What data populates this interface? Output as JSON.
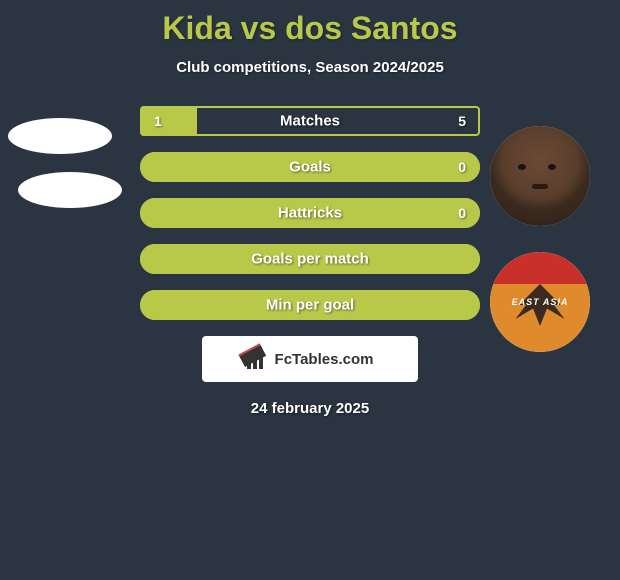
{
  "title": "Kida vs dos Santos",
  "subtitle": "Club competitions, Season 2024/2025",
  "date": "24 february 2025",
  "watermark": "FcTables.com",
  "colors": {
    "background": "#2a3541",
    "accent": "#b8c94a",
    "text": "#ffffff"
  },
  "left_player": {
    "name": "Kida"
  },
  "right_player": {
    "name": "dos Santos",
    "club_crest_label": "EAST ASIA",
    "club_crest_colors": {
      "top": "#c9302c",
      "bottom": "#e08a2e"
    }
  },
  "bars": [
    {
      "label": "Matches",
      "left": "1",
      "right": "5",
      "fill_pct": 16.7,
      "show_values": true,
      "rounded": false
    },
    {
      "label": "Goals",
      "left": "",
      "right": "0",
      "fill_pct": 100,
      "show_values": true,
      "rounded": true
    },
    {
      "label": "Hattricks",
      "left": "",
      "right": "0",
      "fill_pct": 100,
      "show_values": true,
      "rounded": true
    },
    {
      "label": "Goals per match",
      "left": "",
      "right": "",
      "fill_pct": 100,
      "show_values": false,
      "rounded": true
    },
    {
      "label": "Min per goal",
      "left": "",
      "right": "",
      "fill_pct": 100,
      "show_values": false,
      "rounded": true
    }
  ]
}
